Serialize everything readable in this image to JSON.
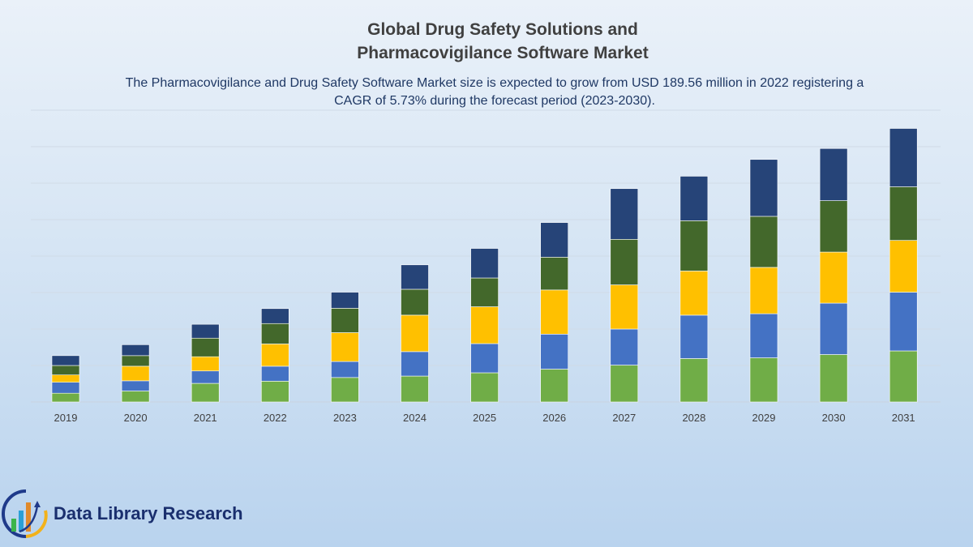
{
  "chart_data": {
    "type": "bar",
    "stacked": true,
    "title": "Global Drug Safety Solutions and Pharmacovigilance Software Market",
    "subtitle": "The Pharmacovigilance and Drug Safety Software Market size is expected to grow from USD 189.56 million in 2022 registering a CAGR of 5.73% during the forecast period (2023-2030).",
    "xlabel": "",
    "ylabel": "",
    "ylim": [
      0,
      8
    ],
    "grid": true,
    "legend": "none",
    "categories": [
      "2019",
      "2020",
      "2021",
      "2022",
      "2023",
      "2024",
      "2025",
      "2026",
      "2027",
      "2028",
      "2029",
      "2030",
      "2031"
    ],
    "series": [
      {
        "color": "#70ad47",
        "values": [
          0.24,
          0.3,
          0.51,
          0.57,
          0.67,
          0.71,
          0.8,
          0.9,
          1.01,
          1.19,
          1.21,
          1.3,
          1.4
        ]
      },
      {
        "color": "#4472c4",
        "values": [
          0.3,
          0.28,
          0.34,
          0.41,
          0.44,
          0.67,
          0.8,
          0.96,
          0.99,
          1.19,
          1.21,
          1.41,
          1.61
        ]
      },
      {
        "color": "#ffc000",
        "values": [
          0.2,
          0.4,
          0.39,
          0.61,
          0.79,
          1.0,
          1.01,
          1.21,
          1.21,
          1.21,
          1.27,
          1.4,
          1.42
        ]
      },
      {
        "color": "#43682b",
        "values": [
          0.26,
          0.29,
          0.51,
          0.56,
          0.67,
          0.71,
          0.79,
          0.9,
          1.25,
          1.38,
          1.4,
          1.41,
          1.47
        ]
      },
      {
        "color": "#264478",
        "values": [
          0.27,
          0.3,
          0.38,
          0.41,
          0.44,
          0.67,
          0.81,
          0.95,
          1.39,
          1.22,
          1.56,
          1.43,
          1.6
        ]
      }
    ]
  },
  "logo": {
    "text": "Data Library Research"
  }
}
